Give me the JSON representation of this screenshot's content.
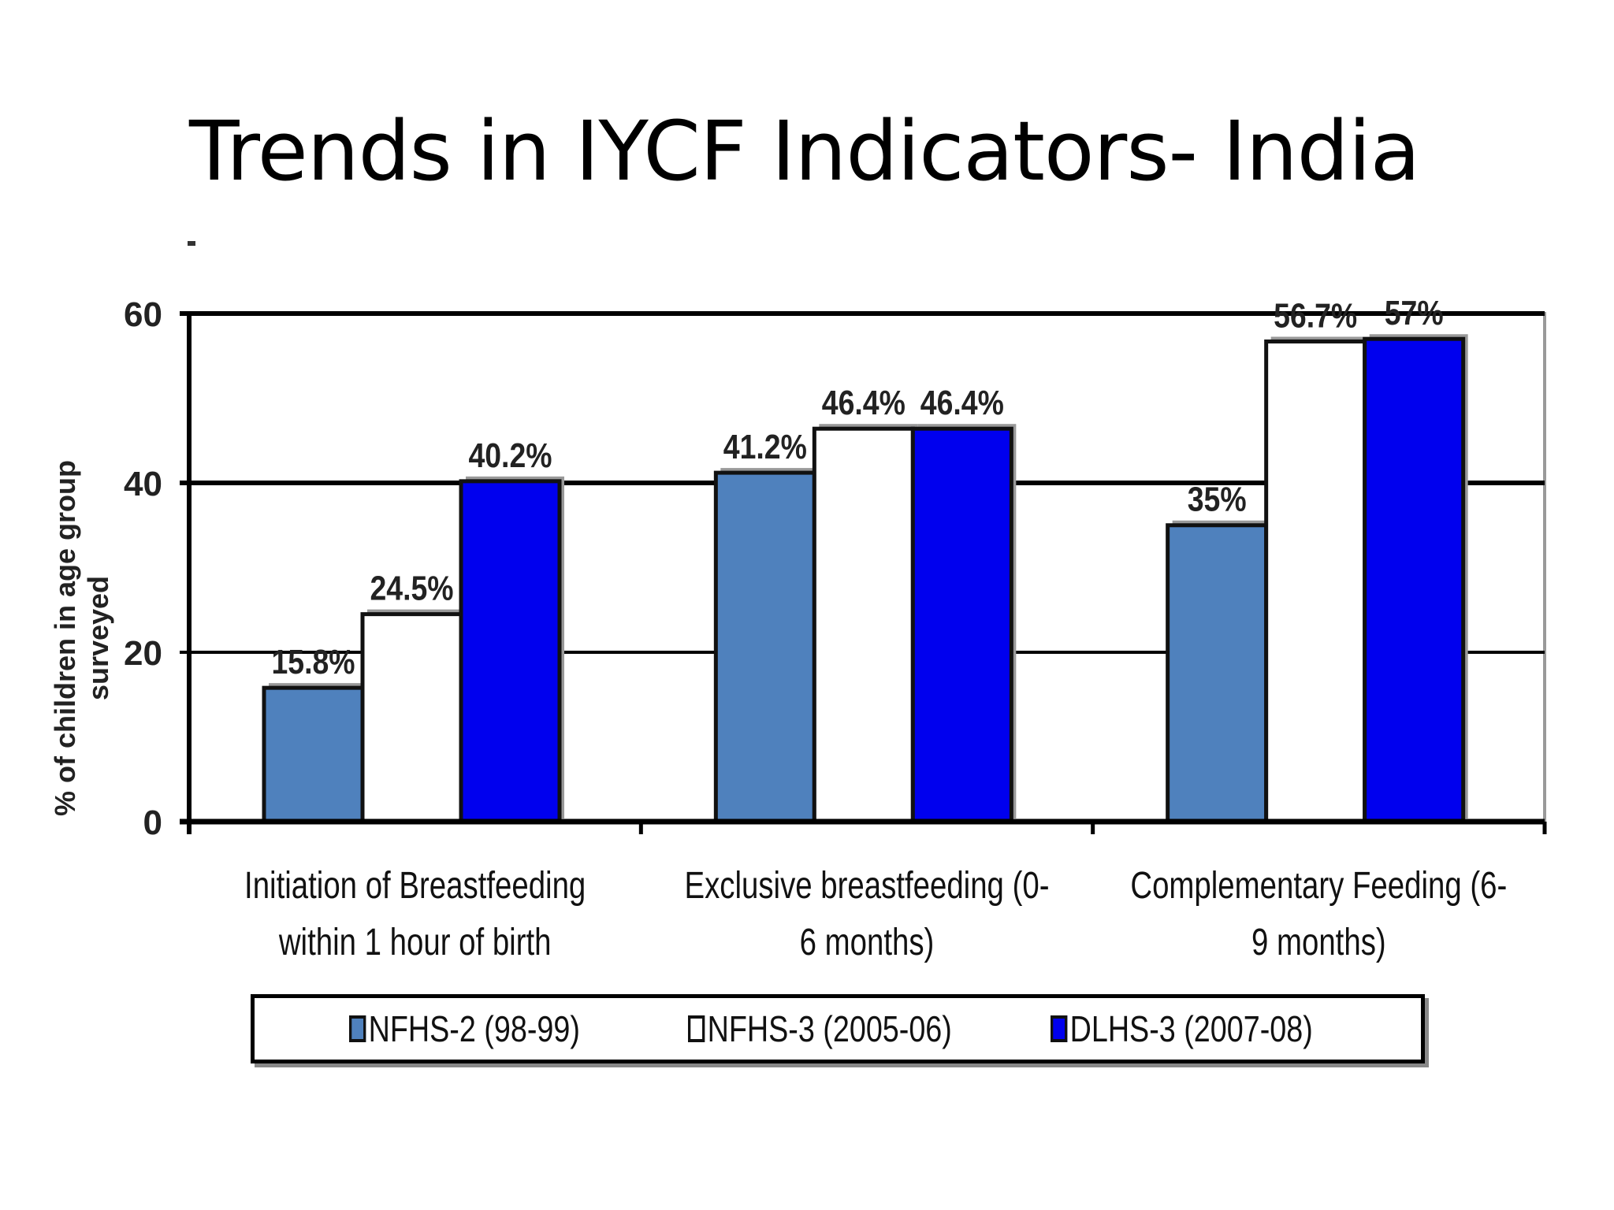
{
  "page": {
    "title": "Trends in IYCF Indicators- India"
  },
  "chart_data": {
    "type": "bar",
    "title": "",
    "ylabel": "% of children in age group surveyed",
    "xlabel": "",
    "ylim": [
      0,
      60
    ],
    "yticks": [
      0,
      20,
      40,
      60
    ],
    "grid": true,
    "legend_position": "bottom",
    "categories": [
      "Initiation of Breastfeeding within 1 hour of birth",
      "Exclusive breastfeeding (0-6 months)",
      "Complementary Feeding (6-9 months)"
    ],
    "category_label_lines": [
      [
        "Initiation  of Breastfeeding",
        "within 1 hour  of birth"
      ],
      [
        "Exclusive breastfeeding  (0-",
        "6 months)"
      ],
      [
        "Complementary Feeding (6-",
        "9 months)"
      ]
    ],
    "series": [
      {
        "name": "NFHS-2 (98-99)",
        "color": "#4f81bd",
        "values": [
          15.8,
          41.2,
          35
        ],
        "labels": [
          "15.8%",
          "41.2%",
          "35%"
        ]
      },
      {
        "name": "NFHS-3 (2005-06)",
        "color": "#ffffff",
        "values": [
          24.5,
          46.4,
          56.7
        ],
        "labels": [
          "24.5%",
          "46.4%",
          "56.7%"
        ]
      },
      {
        "name": "DLHS-3 (2007-08)",
        "color": "#0000ee",
        "values": [
          40.2,
          46.4,
          57
        ],
        "labels": [
          "40.2%",
          "46.4%",
          "57%"
        ]
      }
    ]
  }
}
